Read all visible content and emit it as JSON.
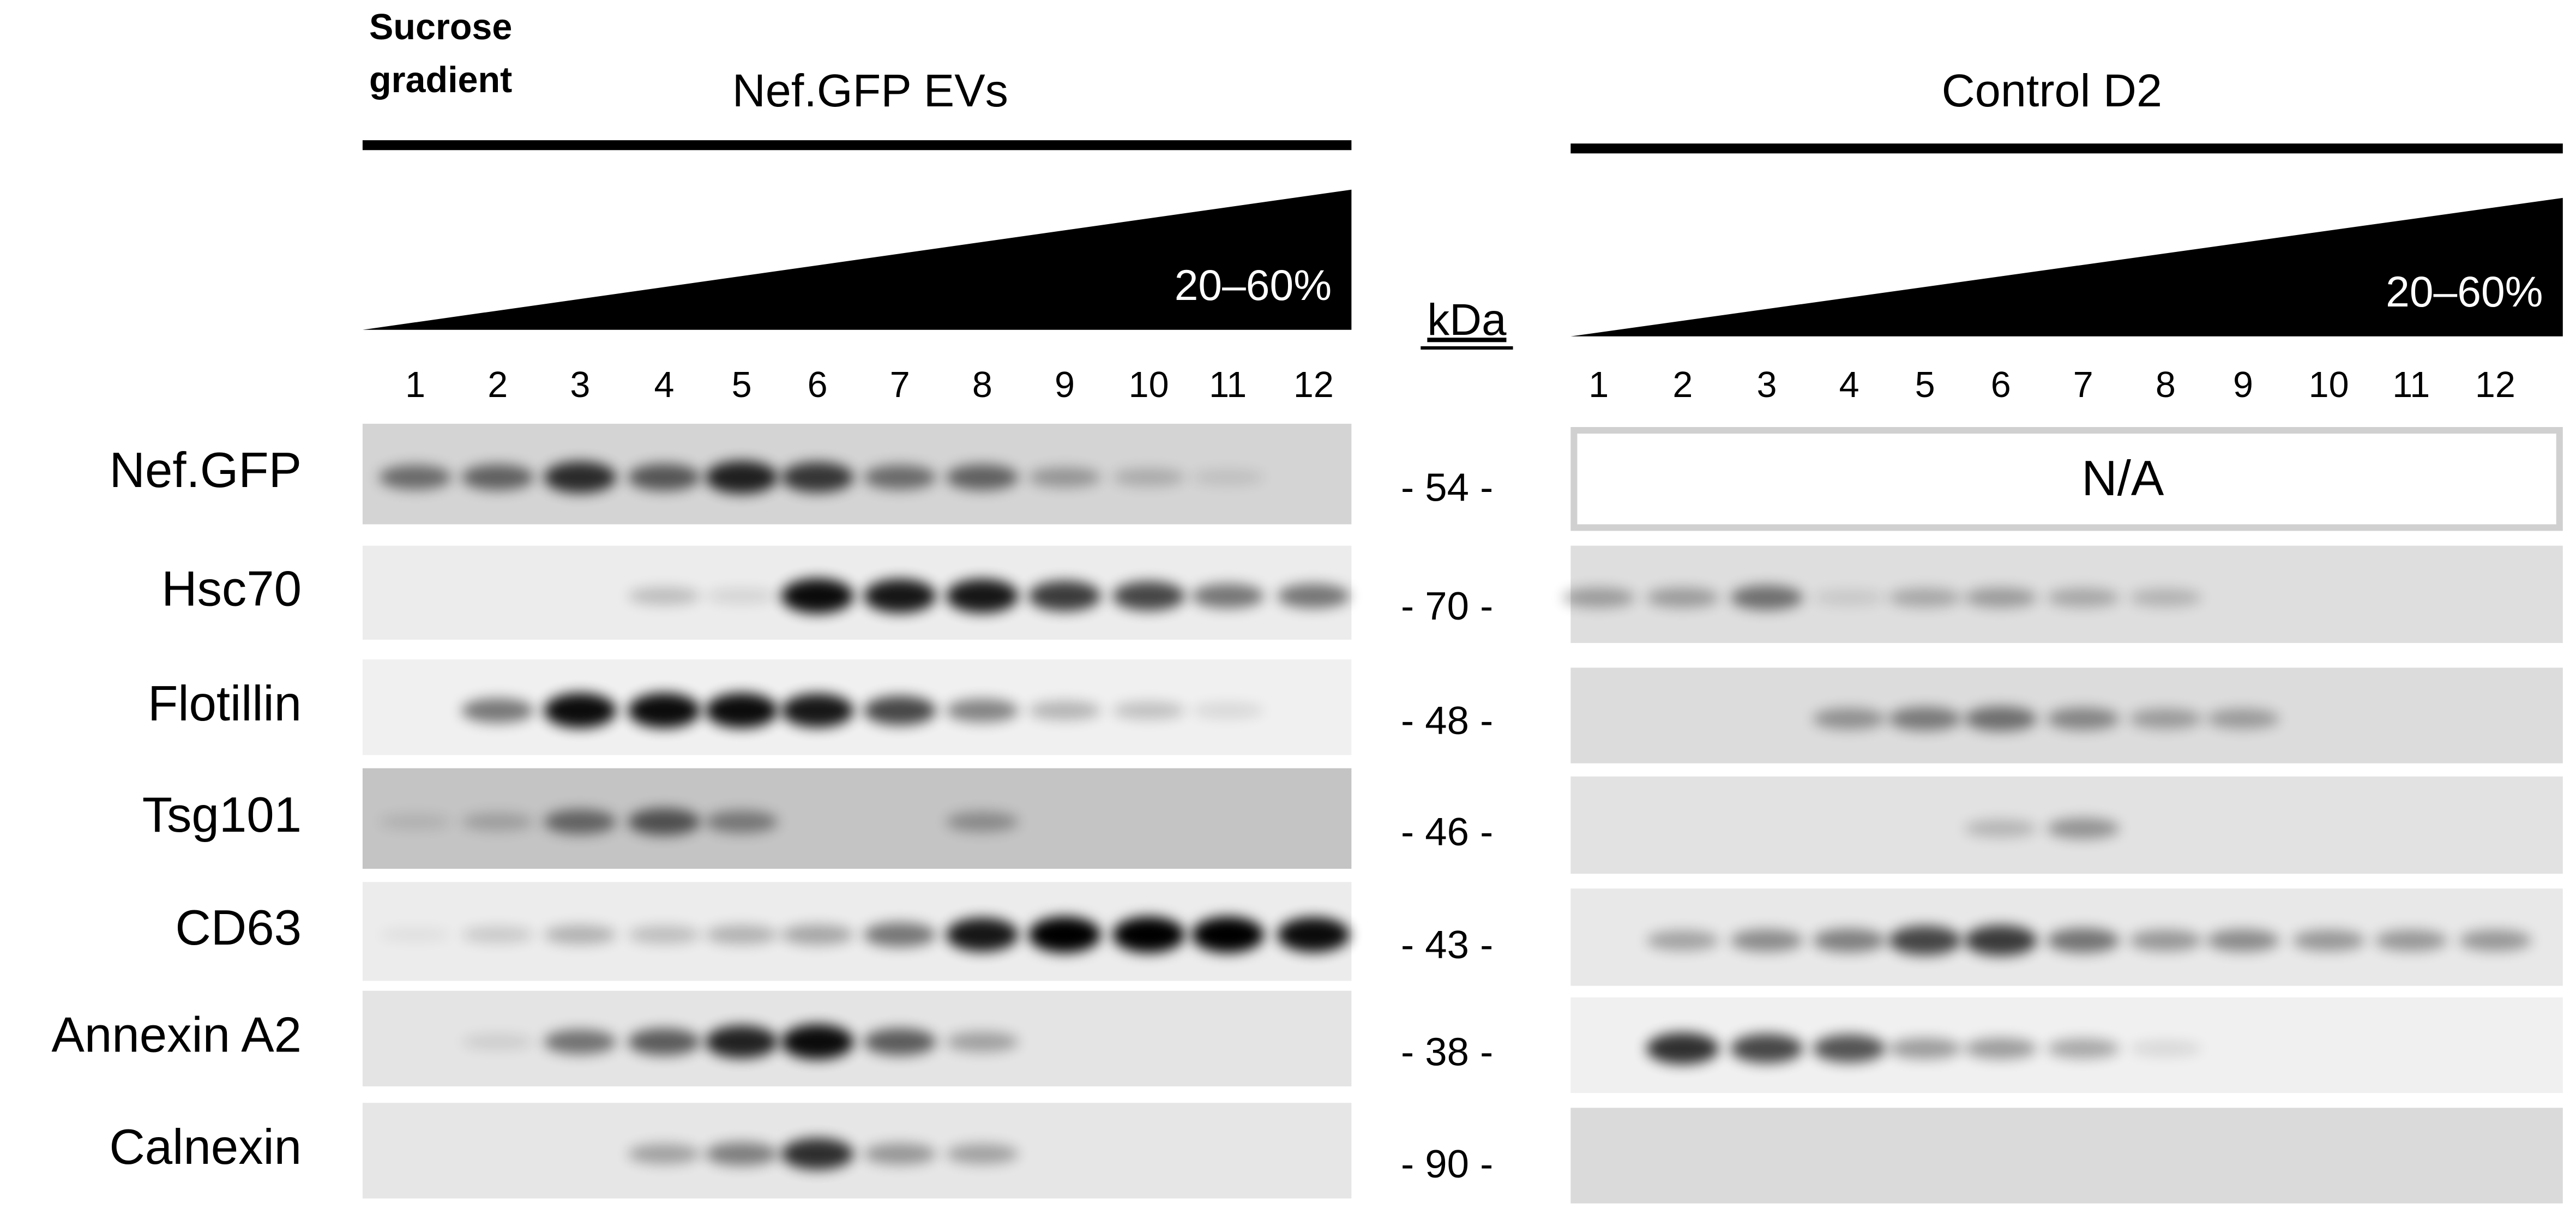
{
  "figure": {
    "sucrose_label": [
      "Sucrose",
      "gradient"
    ],
    "kda_label": "kDa",
    "panels": [
      {
        "title": "Nef.GFP EVs",
        "gradient": "20–60%",
        "lanes": [
          "1",
          "2",
          "3",
          "4",
          "5",
          "6",
          "7",
          "8",
          "9",
          "10",
          "11",
          "12"
        ]
      },
      {
        "title": "Control D2",
        "gradient": "20–60%",
        "lanes": [
          "1",
          "2",
          "3",
          "4",
          "5",
          "6",
          "7",
          "8",
          "9",
          "10",
          "11",
          "12"
        ],
        "missing": "N/A"
      }
    ],
    "rows": [
      {
        "protein": "Nef.GFP",
        "kda": "- 54 -"
      },
      {
        "protein": "Hsc70",
        "kda": "- 70 -"
      },
      {
        "protein": "Flotillin",
        "kda": "- 48 -"
      },
      {
        "protein": "Tsg101",
        "kda": "- 46 -"
      },
      {
        "protein": "CD63",
        "kda": "- 43 -"
      },
      {
        "protein": "Annexin A2",
        "kda": "- 38 -"
      },
      {
        "protein": "Calnexin",
        "kda": "- 90 -"
      }
    ]
  }
}
